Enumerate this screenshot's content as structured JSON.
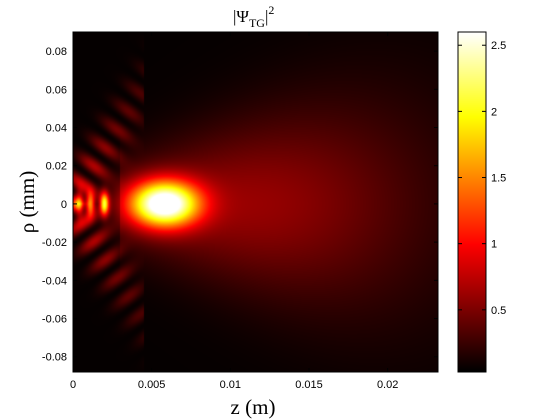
{
  "chart_data": {
    "type": "heatmap",
    "title": "|ΨTG|2",
    "title_parts": {
      "prefix": "|Ψ",
      "sub": "TG",
      "bar": "|",
      "sup": "2"
    },
    "xlabel": "z (m)",
    "ylabel": "ρ (mm)",
    "xlim": [
      0,
      0.0232
    ],
    "ylim": [
      -0.088,
      0.09
    ],
    "xticks": [
      {
        "value": 0,
        "label": "0"
      },
      {
        "value": 0.005,
        "label": "0.005"
      },
      {
        "value": 0.01,
        "label": "0.01"
      },
      {
        "value": 0.015,
        "label": "0.015"
      },
      {
        "value": 0.02,
        "label": "0.02"
      }
    ],
    "yticks": [
      {
        "value": 0.08,
        "label": "0.08"
      },
      {
        "value": 0.06,
        "label": "0.06"
      },
      {
        "value": 0.04,
        "label": "0.04"
      },
      {
        "value": 0.02,
        "label": "0.02"
      },
      {
        "value": 0,
        "label": "0"
      },
      {
        "value": -0.02,
        "label": "-0.02"
      },
      {
        "value": -0.04,
        "label": "-0.04"
      },
      {
        "value": -0.06,
        "label": "-0.06"
      },
      {
        "value": -0.08,
        "label": "-0.08"
      }
    ],
    "colorbar": {
      "colormap": "hot",
      "range": [
        0.03,
        2.6
      ],
      "ticks": [
        {
          "value": 0.5,
          "label": "0.5"
        },
        {
          "value": 1,
          "label": "1"
        },
        {
          "value": 1.5,
          "label": "1.5"
        },
        {
          "value": 2,
          "label": "2"
        },
        {
          "value": 2.5,
          "label": "2.5"
        }
      ]
    },
    "field_features": {
      "main_peak": {
        "z": 0.0058,
        "rho": 0.0,
        "value": 2.6,
        "z_width": 0.0022,
        "rho_width": 0.012
      },
      "near_field_peaks": [
        {
          "z": 0.0004,
          "value": 1.3
        },
        {
          "z": 0.0011,
          "value": 1.4
        },
        {
          "z": 0.002,
          "value": 1.8
        }
      ],
      "far_field_value": 0.55,
      "edge_value": 0.05
    },
    "grid": false,
    "legend": "none"
  }
}
